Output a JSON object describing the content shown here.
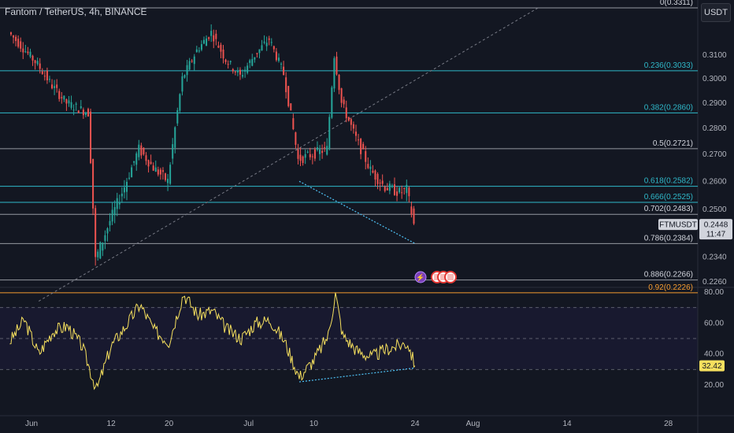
{
  "header": {
    "symbol_title": "Fantom / TetherUS, 4h, BINANCE",
    "currency_button": "USDT"
  },
  "colors": {
    "background": "#131722",
    "up": "#26a69a",
    "down": "#ef5350",
    "fib_cyan": "#2fb8c9",
    "fib_white": "#d1d4dc",
    "rsi_line": "#f6e05e",
    "divergence": "#4fc3f7"
  },
  "chart_data": [
    {
      "type": "candlestick",
      "series_name": "FTMUSDT",
      "interval": "4h",
      "y_axis": {
        "scale": "log",
        "ticks": [
          0.31,
          0.3,
          0.29,
          0.28,
          0.27,
          0.26,
          0.25,
          0.234,
          0.226
        ],
        "tick_labels": [
          "0.3100",
          "0.3000",
          "0.2900",
          "0.2800",
          "0.2700",
          "0.2600",
          "0.2500",
          "0.2340",
          "0.2260"
        ]
      },
      "x_axis": {
        "ticks": [
          "Jun",
          "12",
          "20",
          "Jul",
          "10",
          "24",
          "Aug",
          "14",
          "28"
        ]
      },
      "last_price": {
        "label": "FTMUSDT",
        "value": "0.2448",
        "countdown": "11:47"
      },
      "fibonacci_levels": [
        {
          "label": "0(0.3311)",
          "ratio": 0,
          "price": 0.3311,
          "color": "fib_white"
        },
        {
          "label": "0.236(0.3033)",
          "ratio": 0.236,
          "price": 0.3033,
          "color": "fib_cyan"
        },
        {
          "label": "0.382(0.2860)",
          "ratio": 0.382,
          "price": 0.286,
          "color": "fib_cyan"
        },
        {
          "label": "0.5(0.2721)",
          "ratio": 0.5,
          "price": 0.2721,
          "color": "fib_white"
        },
        {
          "label": "0.618(0.2582)",
          "ratio": 0.618,
          "price": 0.2582,
          "color": "fib_cyan"
        },
        {
          "label": "0.666(0.2525)",
          "ratio": 0.666,
          "price": 0.2525,
          "color": "fib_cyan"
        },
        {
          "label": "0.702(0.2483)",
          "ratio": 0.702,
          "price": 0.2483,
          "color": "fib_white"
        },
        {
          "label": "0.786(0.2384)",
          "ratio": 0.786,
          "price": 0.2384,
          "color": "fib_white"
        },
        {
          "label": "0.886(0.2266)",
          "ratio": 0.886,
          "price": 0.2266,
          "color": "fib_white"
        },
        {
          "label": "0.92(0.2226)",
          "ratio": 0.92,
          "price": 0.2226,
          "color": "orange"
        }
      ],
      "price_path": [
        {
          "date": "2023-05-29",
          "price": 0.32
        },
        {
          "date": "2023-05-31",
          "price": 0.313
        },
        {
          "date": "2023-06-02",
          "price": 0.306
        },
        {
          "date": "2023-06-04",
          "price": 0.297
        },
        {
          "date": "2023-06-06",
          "price": 0.29
        },
        {
          "date": "2023-06-09",
          "price": 0.286
        },
        {
          "date": "2023-06-10",
          "price": 0.233
        },
        {
          "date": "2023-06-12",
          "price": 0.246
        },
        {
          "date": "2023-06-14",
          "price": 0.258
        },
        {
          "date": "2023-06-16",
          "price": 0.272
        },
        {
          "date": "2023-06-18",
          "price": 0.265
        },
        {
          "date": "2023-06-20",
          "price": 0.26
        },
        {
          "date": "2023-06-22",
          "price": 0.3
        },
        {
          "date": "2023-06-24",
          "price": 0.312
        },
        {
          "date": "2023-06-26",
          "price": 0.32
        },
        {
          "date": "2023-06-28",
          "price": 0.308
        },
        {
          "date": "2023-06-30",
          "price": 0.301
        },
        {
          "date": "2023-07-02",
          "price": 0.31
        },
        {
          "date": "2023-07-04",
          "price": 0.317
        },
        {
          "date": "2023-07-06",
          "price": 0.302
        },
        {
          "date": "2023-07-08",
          "price": 0.268
        },
        {
          "date": "2023-07-10",
          "price": 0.27
        },
        {
          "date": "2023-07-12",
          "price": 0.272
        },
        {
          "date": "2023-07-13",
          "price": 0.31
        },
        {
          "date": "2023-07-14",
          "price": 0.29
        },
        {
          "date": "2023-07-16",
          "price": 0.276
        },
        {
          "date": "2023-07-18",
          "price": 0.264
        },
        {
          "date": "2023-07-20",
          "price": 0.258
        },
        {
          "date": "2023-07-22",
          "price": 0.256
        },
        {
          "date": "2023-07-23",
          "price": 0.257
        },
        {
          "date": "2023-07-24",
          "price": 0.2448
        }
      ],
      "drawings": {
        "diagonal_dashed_line": {
          "from": {
            "date": "2023-06-02",
            "price": 0.22
          },
          "to": {
            "date": "2023-08-10",
            "price": 0.3311
          }
        },
        "price_divergence_line": {
          "from": {
            "date": "2023-07-08",
            "price": 0.26
          },
          "to": {
            "date": "2023-07-24",
            "price": 0.2384
          }
        }
      }
    },
    {
      "type": "line",
      "series_name": "RSI",
      "y_axis": {
        "ticks": [
          80,
          60,
          40,
          20
        ],
        "tick_labels": [
          "80.00",
          "60.00",
          "40.00",
          "20.00"
        ],
        "bands": [
          70,
          50,
          30
        ]
      },
      "last_value": "32.42",
      "rsi_path": [
        {
          "date": "2023-05-29",
          "rsi": 48
        },
        {
          "date": "2023-05-31",
          "rsi": 62
        },
        {
          "date": "2023-06-02",
          "rsi": 40
        },
        {
          "date": "2023-06-04",
          "rsi": 55
        },
        {
          "date": "2023-06-06",
          "rsi": 58
        },
        {
          "date": "2023-06-08",
          "rsi": 45
        },
        {
          "date": "2023-06-10",
          "rsi": 17
        },
        {
          "date": "2023-06-12",
          "rsi": 45
        },
        {
          "date": "2023-06-14",
          "rsi": 58
        },
        {
          "date": "2023-06-16",
          "rsi": 72
        },
        {
          "date": "2023-06-18",
          "rsi": 55
        },
        {
          "date": "2023-06-20",
          "rsi": 48
        },
        {
          "date": "2023-06-22",
          "rsi": 79
        },
        {
          "date": "2023-06-24",
          "rsi": 65
        },
        {
          "date": "2023-06-26",
          "rsi": 68
        },
        {
          "date": "2023-06-28",
          "rsi": 56
        },
        {
          "date": "2023-06-30",
          "rsi": 50
        },
        {
          "date": "2023-07-02",
          "rsi": 60
        },
        {
          "date": "2023-07-04",
          "rsi": 62
        },
        {
          "date": "2023-07-06",
          "rsi": 48
        },
        {
          "date": "2023-07-08",
          "rsi": 25
        },
        {
          "date": "2023-07-10",
          "rsi": 36
        },
        {
          "date": "2023-07-12",
          "rsi": 52
        },
        {
          "date": "2023-07-13",
          "rsi": 79
        },
        {
          "date": "2023-07-14",
          "rsi": 52
        },
        {
          "date": "2023-07-16",
          "rsi": 42
        },
        {
          "date": "2023-07-18",
          "rsi": 38
        },
        {
          "date": "2023-07-20",
          "rsi": 43
        },
        {
          "date": "2023-07-22",
          "rsi": 46
        },
        {
          "date": "2023-07-23",
          "rsi": 47
        },
        {
          "date": "2023-07-24",
          "rsi": 32.42
        }
      ],
      "drawings": {
        "rsi_divergence_line": {
          "from": {
            "date": "2023-07-08",
            "rsi": 22
          },
          "to": {
            "date": "2023-07-24",
            "rsi": 31
          }
        }
      }
    }
  ]
}
